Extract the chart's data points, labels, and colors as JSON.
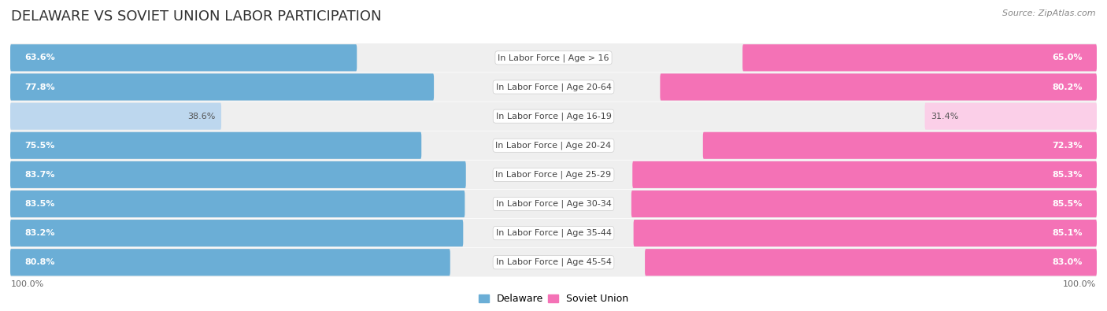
{
  "title": "DELAWARE VS SOVIET UNION LABOR PARTICIPATION",
  "source": "Source: ZipAtlas.com",
  "categories": [
    "In Labor Force | Age > 16",
    "In Labor Force | Age 20-64",
    "In Labor Force | Age 16-19",
    "In Labor Force | Age 20-24",
    "In Labor Force | Age 25-29",
    "In Labor Force | Age 30-34",
    "In Labor Force | Age 35-44",
    "In Labor Force | Age 45-54"
  ],
  "delaware_values": [
    63.6,
    77.8,
    38.6,
    75.5,
    83.7,
    83.5,
    83.2,
    80.8
  ],
  "soviet_values": [
    65.0,
    80.2,
    31.4,
    72.3,
    85.3,
    85.5,
    85.1,
    83.0
  ],
  "delaware_color": "#6BAED6",
  "delaware_color_light": "#BDD7EE",
  "soviet_color": "#F472B6",
  "soviet_color_light": "#FBCFE8",
  "row_bg_odd": "#EFEFEF",
  "row_bg_even": "#E8E8E8",
  "background_color": "#FFFFFF",
  "title_fontsize": 13,
  "label_fontsize": 8.0,
  "value_fontsize": 8.0,
  "legend_fontsize": 9,
  "axis_label_fontsize": 8,
  "light_rows": [
    2
  ]
}
